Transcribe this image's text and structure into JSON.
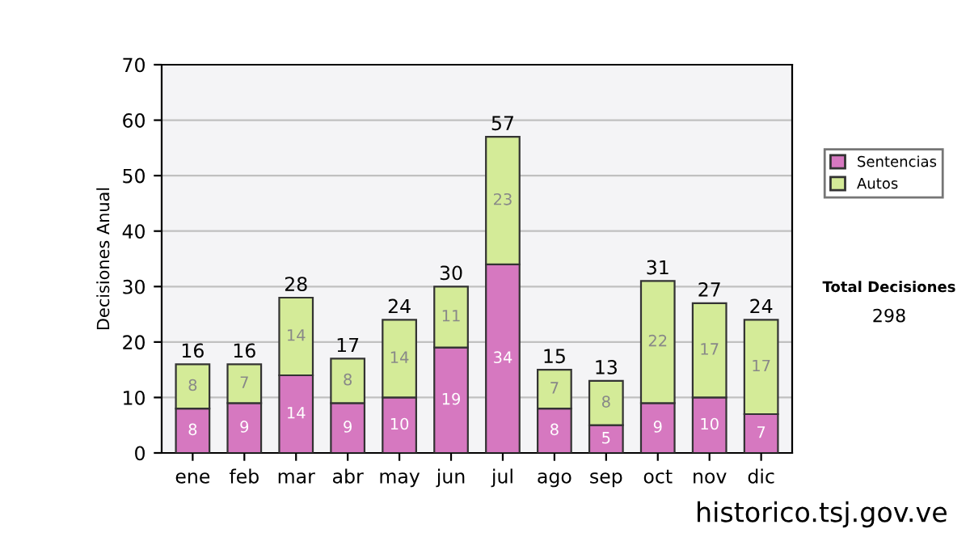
{
  "chart_data": {
    "type": "bar",
    "ylabel": "Decisiones Anual",
    "categories": [
      "ene",
      "feb",
      "mar",
      "abr",
      "may",
      "jun",
      "jul",
      "ago",
      "sep",
      "oct",
      "nov",
      "dic"
    ],
    "series": [
      {
        "name": "Sentencias",
        "color": "#d678c0",
        "values": [
          8,
          9,
          14,
          9,
          10,
          19,
          34,
          8,
          5,
          9,
          10,
          7
        ]
      },
      {
        "name": "Autos",
        "color": "#d4eb98",
        "values": [
          8,
          7,
          14,
          8,
          14,
          11,
          23,
          7,
          8,
          22,
          17,
          17
        ]
      }
    ],
    "stacked": true,
    "data_labels": true,
    "totals": [
      "16",
      "16",
      "28",
      "17",
      "24",
      "30",
      "57",
      "15",
      "13",
      "31",
      "27",
      "24"
    ],
    "ylim": [
      0,
      70
    ],
    "yticks": [
      0,
      10,
      20,
      30,
      40,
      50,
      60,
      70
    ],
    "grid": "y",
    "legend": "right",
    "annotations": [
      "Total Decisiones",
      "298",
      "historico.tsj.gov.ve"
    ]
  }
}
